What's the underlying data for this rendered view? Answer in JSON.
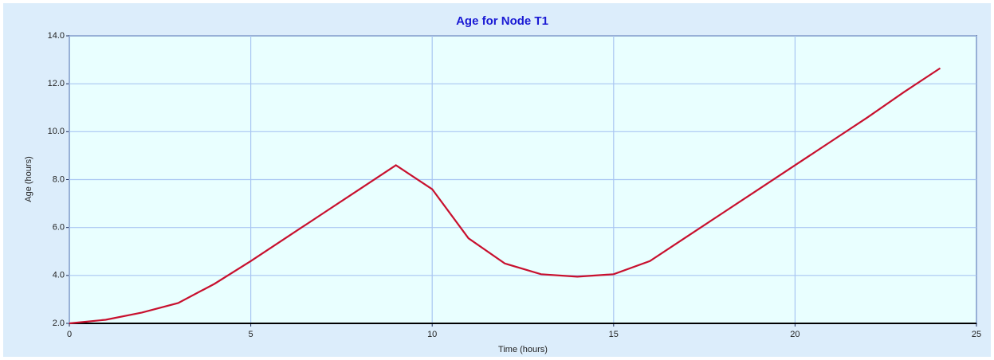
{
  "chart_data": {
    "type": "line",
    "title": "Age for Node T1",
    "x_label": "Time (hours)",
    "y_label": "Age (hours)",
    "x": [
      0,
      1,
      2,
      3,
      4,
      5,
      6,
      7,
      8,
      9,
      10,
      11,
      12,
      13,
      14,
      15,
      16,
      17,
      18,
      19,
      20,
      21,
      22,
      23,
      24
    ],
    "series": [
      {
        "name": "Age",
        "color": "#c8102e",
        "values": [
          2.0,
          2.15,
          2.45,
          2.85,
          3.65,
          4.6,
          5.6,
          6.6,
          7.6,
          8.6,
          7.6,
          5.55,
          4.5,
          4.05,
          3.95,
          4.05,
          4.6,
          5.6,
          6.6,
          7.6,
          8.6,
          9.6,
          10.6,
          11.65,
          12.65
        ]
      }
    ],
    "xlim": [
      0,
      25
    ],
    "xticks": [
      0,
      5,
      10,
      15,
      20,
      25
    ],
    "ylim": [
      2,
      14
    ],
    "yticks": [
      {
        "value": 2,
        "label": "2.0"
      },
      {
        "value": 4,
        "label": "4.0"
      },
      {
        "value": 6,
        "label": "6.0"
      },
      {
        "value": 8,
        "label": "8.0"
      },
      {
        "value": 10,
        "label": "10.0"
      },
      {
        "value": 12,
        "label": "12.0"
      },
      {
        "value": 14,
        "label": "14.0"
      }
    ],
    "grid": true
  }
}
